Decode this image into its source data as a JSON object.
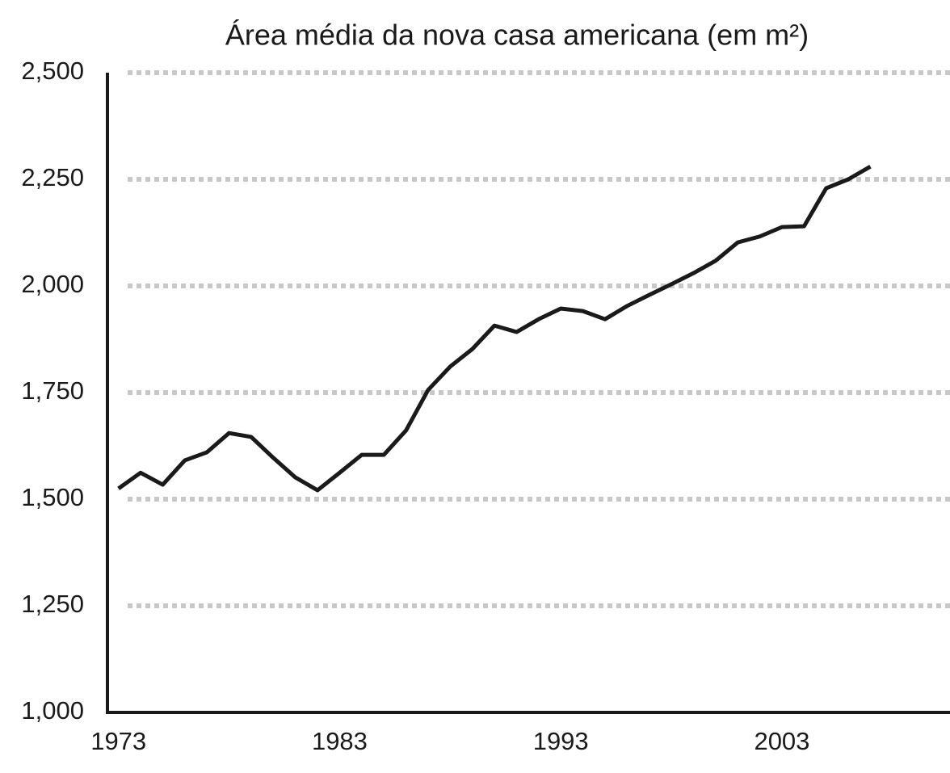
{
  "chart_data": {
    "type": "line",
    "title": "Área média da nova casa americana (em m²)",
    "x": [
      1973,
      1974,
      1975,
      1976,
      1977,
      1978,
      1979,
      1980,
      1981,
      1982,
      1983,
      1984,
      1985,
      1986,
      1987,
      1988,
      1989,
      1990,
      1991,
      1992,
      1993,
      1994,
      1995,
      1996,
      1997,
      1998,
      1999,
      2000,
      2001,
      2002,
      2003,
      2004,
      2005,
      2006,
      2007
    ],
    "series": [
      {
        "name": "Área média",
        "color": "#1a1a1a",
        "values": [
          1525,
          1562,
          1534,
          1591,
          1610,
          1655,
          1646,
          1597,
          1551,
          1521,
          1562,
          1604,
          1604,
          1661,
          1756,
          1811,
          1852,
          1907,
          1892,
          1922,
          1947,
          1941,
          1922,
          1953,
          1979,
          2004,
          2030,
          2059,
          2102,
          2116,
          2138,
          2140,
          2229,
          2250,
          2280
        ]
      }
    ],
    "xlim": [
      1972.5,
      2010.6
    ],
    "xticks": [
      1973,
      1983,
      1993,
      2003
    ],
    "ylim": [
      1000,
      2500
    ],
    "yticks": [
      {
        "value": 1000,
        "label": "1,000"
      },
      {
        "value": 1250,
        "label": "1,250"
      },
      {
        "value": 1500,
        "label": "1,500"
      },
      {
        "value": 1750,
        "label": "1,750"
      },
      {
        "value": 2000,
        "label": "2,000"
      },
      {
        "value": 2250,
        "label": "2,250"
      },
      {
        "value": 2500,
        "label": "2,500"
      }
    ],
    "grid": true
  }
}
